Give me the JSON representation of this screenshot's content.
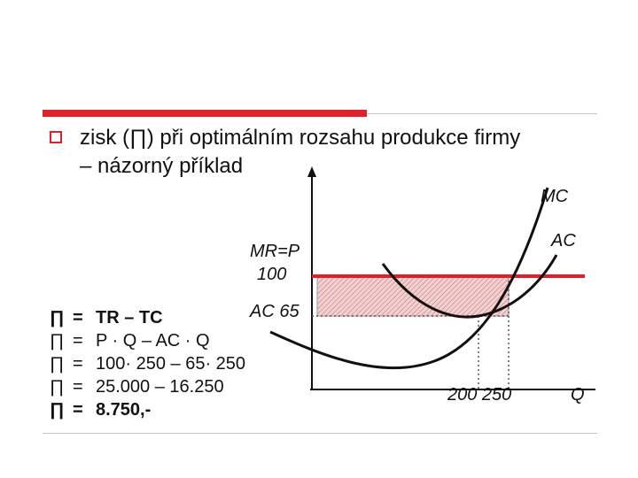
{
  "slide": {
    "heading_line1": "zisk (∏) při optimálním rozsahu produkce firmy",
    "heading_line2": "– názorný příklad"
  },
  "diagram": {
    "label_mc": "MC",
    "label_ac": "AC",
    "label_mr_p": "MR=P",
    "label_mr_value": "100",
    "label_ac_value": "AC 65",
    "label_q_values": "200 250",
    "label_q": "Q"
  },
  "calc": {
    "rows": [
      {
        "pi": "∏",
        "eq": "=",
        "expr": "TR – TC",
        "bold": true
      },
      {
        "pi": "∏",
        "eq": "=",
        "expr": "P · Q – AC · Q",
        "bold": false
      },
      {
        "pi": "∏",
        "eq": "=",
        "expr": "100· 250 – 65· 250",
        "bold": false
      },
      {
        "pi": "∏",
        "eq": "=",
        "expr": "25.000 – 16.250",
        "bold": false
      },
      {
        "pi": "∏",
        "eq": "=",
        "expr": "8.750,-",
        "bold": true
      }
    ]
  },
  "colors": {
    "accent": "#e0202a",
    "profit_fill": "#f2c2c2"
  }
}
